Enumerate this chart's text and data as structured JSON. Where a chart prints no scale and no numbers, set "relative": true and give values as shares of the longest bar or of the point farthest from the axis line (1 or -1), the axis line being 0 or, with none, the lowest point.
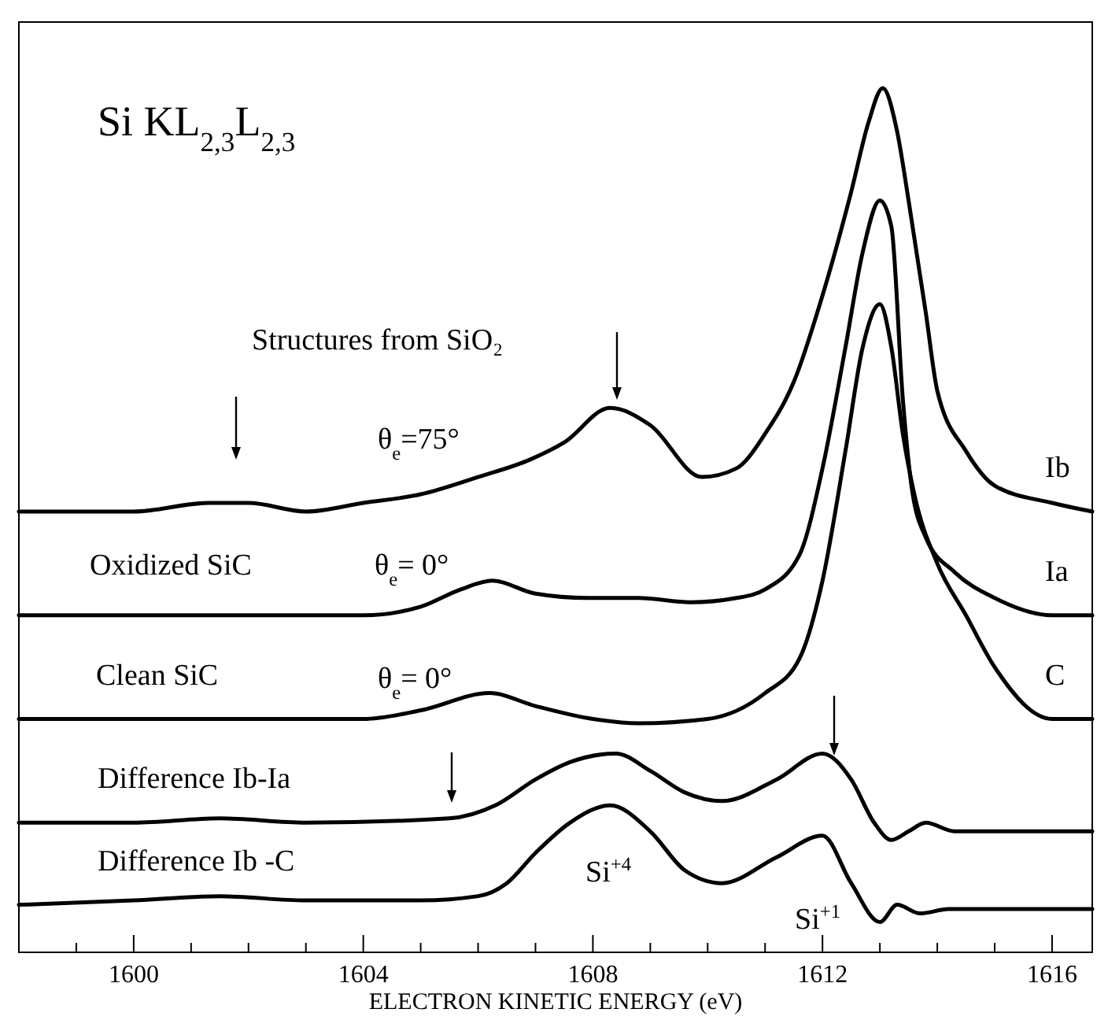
{
  "chart_data": {
    "type": "line",
    "title": "Si KL$_{2,3}$L$_{2,3}$",
    "xlabel": "ELECTRON KINETIC ENERGY (eV)",
    "relative": true,
    "xlim": [
      1598,
      1616.7
    ],
    "xticks": [
      {
        "value": 1599,
        "label": null
      },
      1600,
      {
        "value": 1601,
        "label": null
      },
      {
        "value": 1602,
        "label": null
      },
      {
        "value": 1603,
        "label": null
      },
      1604,
      {
        "value": 1605,
        "label": null
      },
      {
        "value": 1606,
        "label": null
      },
      {
        "value": 1607,
        "label": null
      },
      1608,
      {
        "value": 1609,
        "label": null
      },
      {
        "value": 1610,
        "label": null
      },
      {
        "value": 1611,
        "label": null
      },
      1612,
      {
        "value": 1613,
        "label": null
      },
      {
        "value": 1614,
        "label": null
      },
      {
        "value": 1615,
        "label": null
      },
      1616
    ],
    "grid": false,
    "series": [
      {
        "name": "Ib",
        "color": "#000000",
        "x": [
          1598,
          1599,
          1600,
          1601.3,
          1602,
          1603,
          1604,
          1605,
          1606,
          1606.9,
          1607.5,
          1608.3,
          1609,
          1609.9,
          1610.5,
          1611,
          1611.5,
          1612,
          1612.5,
          1612.8,
          1613.05,
          1613.3,
          1613.5,
          1613.8,
          1614,
          1614.5,
          1615,
          1616,
          1616.7
        ],
        "values": [
          0.51,
          0.51,
          0.51,
          0.52,
          0.52,
          0.51,
          0.52,
          0.53,
          0.55,
          0.57,
          0.59,
          0.63,
          0.61,
          0.55,
          0.56,
          0.6,
          0.66,
          0.76,
          0.88,
          0.96,
          1,
          0.95,
          0.87,
          0.74,
          0.65,
          0.58,
          0.54,
          0.52,
          0.51
        ]
      },
      {
        "name": "Ia",
        "color": "#000000",
        "x": [
          1598,
          1600,
          1602,
          1604,
          1605,
          1605.7,
          1606.25,
          1607,
          1607.9,
          1608.8,
          1609.7,
          1610.5,
          1611,
          1611.6,
          1612,
          1612.4,
          1612.7,
          1613,
          1613.2,
          1613.4,
          1613.55,
          1613.8,
          1614.3,
          1615,
          1616,
          1616.7
        ],
        "values": [
          0.39,
          0.39,
          0.39,
          0.39,
          0.4,
          0.42,
          0.43,
          0.415,
          0.41,
          0.41,
          0.405,
          0.41,
          0.42,
          0.46,
          0.56,
          0.7,
          0.81,
          0.87,
          0.84,
          0.64,
          0.54,
          0.48,
          0.44,
          0.41,
          0.39,
          0.39
        ]
      },
      {
        "name": "C",
        "color": "#000000",
        "x": [
          1598,
          1600,
          1602,
          1604,
          1605,
          1606.2,
          1607,
          1608,
          1608.8,
          1610,
          1611,
          1611.6,
          1612,
          1612.4,
          1612.7,
          1613,
          1613.2,
          1613.4,
          1613.6,
          1614,
          1614.5,
          1615,
          1616,
          1616.7
        ],
        "values": [
          0.27,
          0.27,
          0.27,
          0.27,
          0.28,
          0.3,
          0.285,
          0.27,
          0.265,
          0.27,
          0.3,
          0.34,
          0.43,
          0.58,
          0.7,
          0.75,
          0.7,
          0.6,
          0.53,
          0.45,
          0.39,
          0.33,
          0.27,
          0.27
        ]
      },
      {
        "name": "Difference Ib-Ia",
        "color": "#000000",
        "x": [
          1598,
          1600,
          1601.5,
          1603,
          1605.5,
          1606.3,
          1607,
          1607.6,
          1608.4,
          1609,
          1609.6,
          1610.25,
          1611.2,
          1612,
          1612.5,
          1612.9,
          1613.2,
          1613.5,
          1613.8,
          1614.3,
          1615,
          1616.7
        ],
        "values": [
          0.15,
          0.15,
          0.155,
          0.15,
          0.155,
          0.17,
          0.2,
          0.22,
          0.23,
          0.21,
          0.185,
          0.175,
          0.2,
          0.23,
          0.2,
          0.15,
          0.13,
          0.14,
          0.15,
          0.14,
          0.14,
          0.14
        ]
      },
      {
        "name": "Difference Ib -C",
        "color": "#000000",
        "x": [
          1598,
          1600,
          1601.5,
          1603,
          1605,
          1606,
          1606.5,
          1607,
          1607.6,
          1608.3,
          1609,
          1609.6,
          1610.25,
          1611.2,
          1612,
          1612.5,
          1613,
          1613.3,
          1613.7,
          1614.2,
          1615,
          1616.7
        ],
        "values": [
          0.055,
          0.06,
          0.065,
          0.06,
          0.06,
          0.065,
          0.08,
          0.115,
          0.15,
          0.17,
          0.14,
          0.095,
          0.08,
          0.11,
          0.135,
          0.08,
          0.035,
          0.055,
          0.045,
          0.05,
          0.05,
          0.05
        ]
      }
    ],
    "annotations": [
      "Structures from SiO₂",
      "θ$_{e}$=75°",
      "Oxidized SiC",
      "θ$_{e}$= 0°",
      "Clean SiC",
      "θ$_{e}$= 0°",
      "Si$^{+4}$",
      "Si$^{+1}$"
    ]
  }
}
